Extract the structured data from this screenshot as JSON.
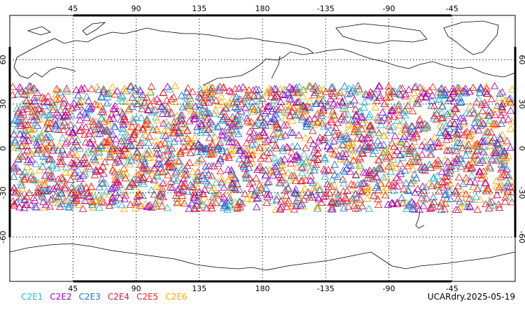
{
  "map": {
    "projection": "cylindrical-equidistant",
    "lon_ticks": [
      "45",
      "90",
      "135",
      "180",
      "-135",
      "-90",
      "-45"
    ],
    "lat_ticks": [
      "60",
      "30",
      "0",
      "-30",
      "-60"
    ],
    "grid": "dotted",
    "colors": {
      "C2E1": "#2bb6c9",
      "C2E2": "#a000c8",
      "C2E3": "#1f6fd0",
      "C2E4": "#c8203c",
      "C2E5": "#ff1e1e",
      "C2E6": "#ffaa00"
    }
  },
  "legend": [
    "C2E1",
    "C2E2",
    "C2E3",
    "C2E4",
    "C2E5",
    "C2E6"
  ],
  "stamp": "UCARdry.2025-05-19"
}
